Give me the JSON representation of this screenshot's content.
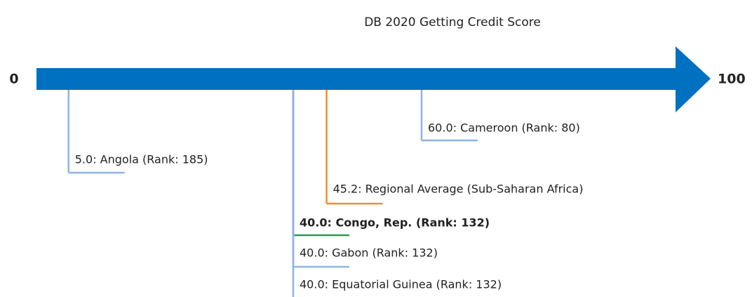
{
  "chart_data": {
    "type": "scale",
    "title": "DB 2020 Getting Credit Score",
    "xlim": [
      0,
      100
    ],
    "xticks": [
      0,
      100
    ],
    "axis_color": "#0070c0",
    "items": [
      {
        "label": "5.0: Angola (Rank: 185)",
        "value": 5.0,
        "color": "#8db4e2"
      },
      {
        "label": "60.0: Cameroon (Rank: 80)",
        "value": 60.0,
        "color": "#8db4e2"
      },
      {
        "label": "45.2: Regional Average (Sub-Saharan Africa)",
        "value": 45.2,
        "color": "#f28e2b"
      },
      {
        "label": "40.0: Congo, Rep. (Rank: 132)",
        "value": 40.0,
        "color": "#2e9a4b",
        "highlight": true
      },
      {
        "label": "40.0: Gabon (Rank: 132)",
        "value": 40.0,
        "color": "#8db4e2"
      },
      {
        "label": "40.0: Equatorial Guinea (Rank: 132)",
        "value": 40.0,
        "color": "#8db4e2"
      }
    ]
  }
}
